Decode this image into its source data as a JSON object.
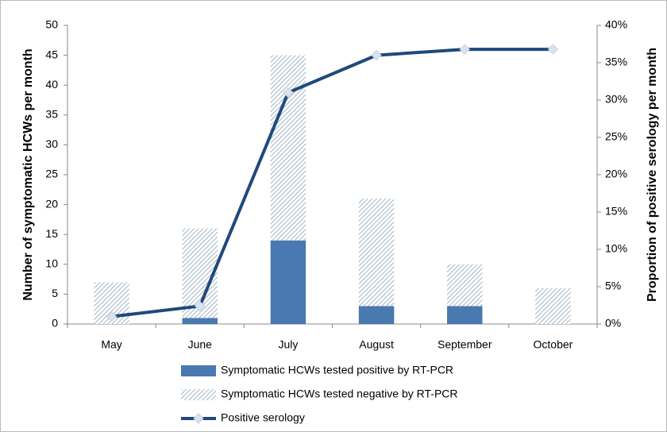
{
  "chart_data": {
    "type": "bar",
    "categories": [
      "May",
      "June",
      "July",
      "August",
      "September",
      "October"
    ],
    "series": [
      {
        "name": "Symptomatic HCWs tested positive by RT-PCR",
        "type": "bar",
        "color": "#4a78b0",
        "values": [
          0,
          1,
          14,
          3,
          3,
          0
        ]
      },
      {
        "name": "Symptomatic HCWs tested negative by RT-PCR",
        "type": "bar",
        "color": "#8aa3b5",
        "values": [
          7,
          15,
          31,
          18,
          7,
          6
        ]
      },
      {
        "name": "Positive serology",
        "type": "line",
        "axis": "y2",
        "color": "#1f497d",
        "values": [
          1,
          2.4,
          31,
          36,
          36.8,
          36.8
        ]
      }
    ],
    "y_label": "Number of symptomatic HCWs per month",
    "y2_label": "Proportion of positive serology per month",
    "ylim": [
      0,
      50
    ],
    "yticks": [
      0,
      5,
      10,
      15,
      20,
      25,
      30,
      35,
      40,
      45,
      50
    ],
    "y2lim": [
      0,
      40
    ],
    "y2ticks": [
      {
        "value": 0,
        "label": "0%"
      },
      {
        "value": 5,
        "label": "5%"
      },
      {
        "value": 10,
        "label": "10%"
      },
      {
        "value": 15,
        "label": "15%"
      },
      {
        "value": 20,
        "label": "20%"
      },
      {
        "value": 25,
        "label": "25%"
      },
      {
        "value": 30,
        "label": "30%"
      },
      {
        "value": 35,
        "label": "35%"
      },
      {
        "value": 40,
        "label": "40%"
      }
    ],
    "grid": false
  }
}
